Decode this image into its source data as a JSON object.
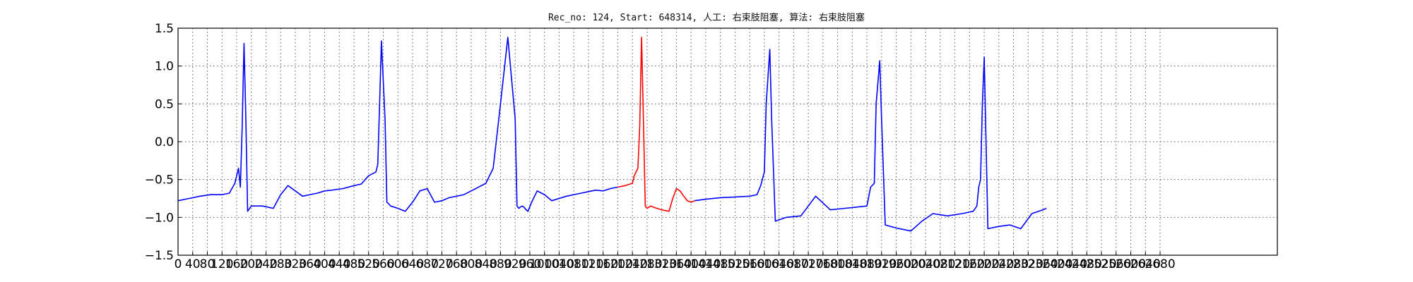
{
  "chart_data": {
    "type": "line",
    "title": "Rec_no: 124, Start: 648314, 人工: 右束肢阻塞, 算法: 右束肢阻塞",
    "xlabel": "",
    "ylabel": "",
    "xlim": [
      0,
      3000
    ],
    "ylim": [
      -1.5,
      1.5
    ],
    "grid": true,
    "x_tick_step": 40,
    "x_tick_max": 2680,
    "y_ticks": [
      1.5,
      1.0,
      0.5,
      0.0,
      -0.5,
      -1.0,
      -1.5
    ],
    "y_tick_labels": [
      "1.5",
      "1.0",
      "0.5",
      "0.0",
      "−0.5",
      "−1.0",
      "−1.5"
    ],
    "series": [
      {
        "color": "#0000ff",
        "x": [
          0,
          30,
          60,
          90,
          120,
          140,
          155,
          165,
          170,
          175,
          180,
          185,
          190,
          200,
          230,
          260,
          280,
          300,
          320,
          340,
          360,
          380,
          400,
          420,
          450,
          480,
          500,
          520,
          540,
          545,
          550,
          555,
          565,
          570,
          575,
          580,
          600,
          620,
          640,
          660,
          680,
          700,
          720,
          740,
          760,
          780,
          800,
          820,
          840,
          860,
          880,
          900,
          920,
          925,
          930,
          935,
          940,
          945,
          950,
          955,
          965,
          980,
          1000,
          1020,
          1040,
          1060,
          1080,
          1100,
          1120,
          1140,
          1160,
          1180,
          1200
        ],
        "y": [
          -0.78,
          -0.75,
          -0.72,
          -0.7,
          -0.7,
          -0.68,
          -0.55,
          -0.35,
          -0.6,
          0.2,
          1.3,
          0.3,
          -0.92,
          -0.85,
          -0.85,
          -0.88,
          -0.7,
          -0.58,
          -0.65,
          -0.72,
          -0.7,
          -0.68,
          -0.65,
          -0.64,
          -0.62,
          -0.58,
          -0.56,
          -0.45,
          -0.4,
          -0.3,
          0.5,
          1.33,
          0.3,
          -0.8,
          -0.82,
          -0.85,
          -0.88,
          -0.92,
          -0.8,
          -0.65,
          -0.62,
          -0.8,
          -0.78,
          -0.74,
          -0.72,
          -0.7,
          -0.65,
          -0.6,
          -0.55,
          -0.35,
          0.5,
          1.38,
          0.3,
          -0.85,
          -0.88,
          -0.86,
          -0.85,
          -0.87,
          -0.9,
          -0.92,
          -0.8,
          -0.65,
          -0.7,
          -0.78,
          -0.75,
          -0.72,
          -0.7,
          -0.68,
          -0.66,
          -0.64,
          -0.65,
          -0.62,
          -0.6
        ]
      },
      {
        "color": "#ff0000",
        "x": [
          1200,
          1220,
          1240,
          1245,
          1255,
          1260,
          1265,
          1270,
          1275,
          1280,
          1290,
          1300,
          1320,
          1340,
          1350,
          1360,
          1370,
          1380,
          1390,
          1400,
          1410
        ],
        "y": [
          -0.6,
          -0.58,
          -0.55,
          -0.45,
          -0.35,
          0.2,
          1.38,
          0.3,
          -0.85,
          -0.88,
          -0.85,
          -0.87,
          -0.9,
          -0.92,
          -0.75,
          -0.62,
          -0.65,
          -0.72,
          -0.78,
          -0.8,
          -0.78
        ]
      },
      {
        "color": "#0000ff",
        "x": [
          1410,
          1440,
          1480,
          1520,
          1560,
          1580,
          1590,
          1600,
          1605,
          1615,
          1620,
          1630,
          1660,
          1700,
          1720,
          1740,
          1780,
          1820,
          1860,
          1880,
          1890,
          1900,
          1905,
          1915,
          1920,
          1930,
          1960,
          2000,
          2030,
          2060,
          2100,
          2140,
          2170,
          2180,
          2185,
          2190,
          2195,
          2200,
          2210,
          2240,
          2270,
          2300,
          2330,
          2360,
          2370
        ],
        "y": [
          -0.78,
          -0.76,
          -0.74,
          -0.73,
          -0.72,
          -0.7,
          -0.58,
          -0.4,
          0.5,
          1.22,
          0.3,
          -1.05,
          -1.0,
          -0.98,
          -0.85,
          -0.72,
          -0.9,
          -0.88,
          -0.86,
          -0.85,
          -0.6,
          -0.55,
          0.5,
          1.07,
          0.3,
          -1.1,
          -1.14,
          -1.18,
          -1.05,
          -0.95,
          -0.98,
          -0.95,
          -0.92,
          -0.85,
          -0.6,
          -0.5,
          0.5,
          1.12,
          -1.15,
          -1.12,
          -1.1,
          -1.15,
          -0.95,
          -0.9,
          -0.88
        ]
      }
    ]
  }
}
